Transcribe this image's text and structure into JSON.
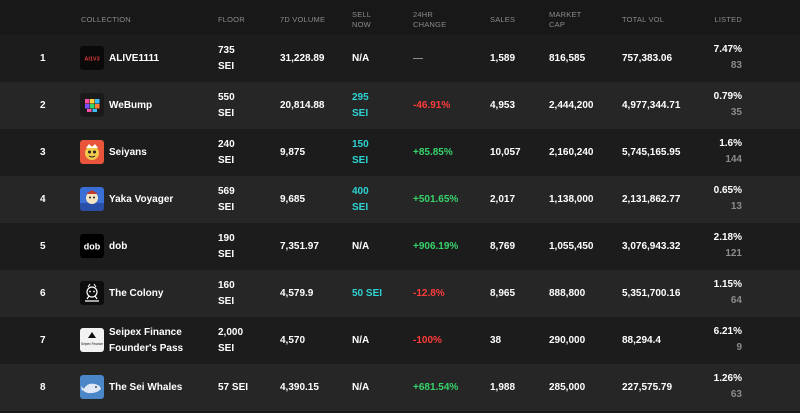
{
  "headers": {
    "collection": "COLLECTION",
    "floor": "FLOOR",
    "volume7d": "7D VOLUME",
    "sell_now_1": "SELL",
    "sell_now_2": "NOW",
    "change_1": "24HR",
    "change_2": "CHANGE",
    "sales": "SALES",
    "mcap_1": "MARKET",
    "mcap_2": "CAP",
    "total_vol": "TOTAL VOL",
    "listed": "LISTED"
  },
  "rows": [
    {
      "rank": "1",
      "name": "ALIVE1111",
      "floor1": "735",
      "floor2": "SEI",
      "vol": "31,228.89",
      "sell1": "N/A",
      "sell2": "",
      "change": "—",
      "sales": "1,589",
      "mcap": "816,585",
      "tvol": "757,383.06",
      "listed_pct": "7.47%",
      "listed_count": "83",
      "logo_text": "AI1V3"
    },
    {
      "rank": "2",
      "name": "WeBump",
      "floor1": "550",
      "floor2": "SEI",
      "vol": "20,814.88",
      "sell1": "295",
      "sell2": "SEI",
      "change": "-46.91%",
      "sales": "4,953",
      "mcap": "2,444,200",
      "tvol": "4,977,344.71",
      "listed_pct": "0.79%",
      "listed_count": "35",
      "logo_text": ""
    },
    {
      "rank": "3",
      "name": "Seiyans",
      "floor1": "240",
      "floor2": "SEI",
      "vol": "9,875",
      "sell1": "150",
      "sell2": "SEI",
      "change": "+85.85%",
      "sales": "10,057",
      "mcap": "2,160,240",
      "tvol": "5,745,165.95",
      "listed_pct": "1.6%",
      "listed_count": "144",
      "logo_text": ""
    },
    {
      "rank": "4",
      "name": "Yaka Voyager",
      "floor1": "569",
      "floor2": "SEI",
      "vol": "9,685",
      "sell1": "400",
      "sell2": "SEI",
      "change": "+501.65%",
      "sales": "2,017",
      "mcap": "1,138,000",
      "tvol": "2,131,862.77",
      "listed_pct": "0.65%",
      "listed_count": "13",
      "logo_text": ""
    },
    {
      "rank": "5",
      "name": "dob",
      "floor1": "190",
      "floor2": "SEI",
      "vol": "7,351.97",
      "sell1": "N/A",
      "sell2": "",
      "change": "+906.19%",
      "sales": "8,769",
      "mcap": "1,055,450",
      "tvol": "3,076,943.32",
      "listed_pct": "2.18%",
      "listed_count": "121",
      "logo_text": "dob"
    },
    {
      "rank": "6",
      "name": "The Colony",
      "floor1": "160",
      "floor2": "SEI",
      "vol": "4,579.9",
      "sell1": "50 SEI",
      "sell2": "",
      "change": "-12.8%",
      "sales": "8,965",
      "mcap": "888,800",
      "tvol": "5,351,700.16",
      "listed_pct": "1.15%",
      "listed_count": "64",
      "logo_text": ""
    },
    {
      "rank": "7",
      "name": "Seipex Finance",
      "name2": "Founder's Pass",
      "floor1": "2,000",
      "floor2": "SEI",
      "vol": "4,570",
      "sell1": "N/A",
      "sell2": "",
      "change": "-100%",
      "sales": "38",
      "mcap": "290,000",
      "tvol": "88,294.4",
      "listed_pct": "6.21%",
      "listed_count": "9",
      "logo_text": "Seipex Finance"
    },
    {
      "rank": "8",
      "name": "The Sei Whales",
      "floor1": "57 SEI",
      "floor2": "",
      "vol": "4,390.15",
      "sell1": "N/A",
      "sell2": "",
      "change": "+681.54%",
      "sales": "1,988",
      "mcap": "285,000",
      "tvol": "227,575.79",
      "listed_pct": "1.26%",
      "listed_count": "63",
      "logo_text": ""
    }
  ],
  "colors": {
    "background": "#181818",
    "row_alt": "#262626",
    "cyan": "#2ed3d3",
    "red": "#ff3b3b",
    "green": "#36d36b"
  }
}
